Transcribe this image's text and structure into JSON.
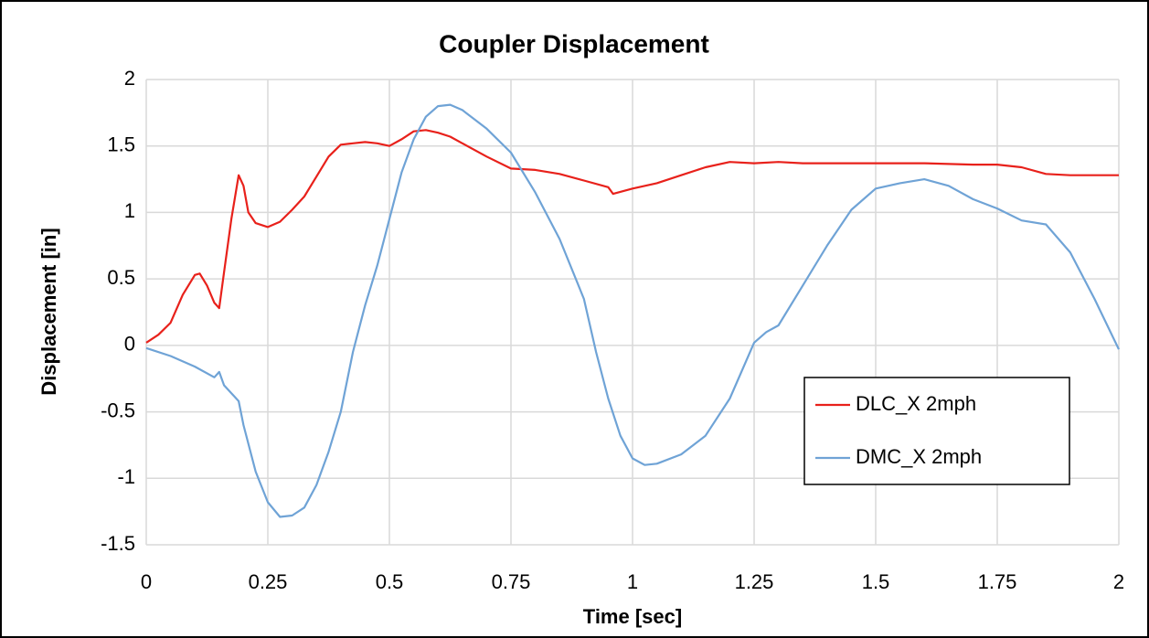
{
  "chart_data": {
    "type": "line",
    "title": "Coupler Displacement",
    "xlabel": "Time [sec]",
    "ylabel": "Displacement [in]",
    "xlim": [
      0,
      2
    ],
    "xticks": [
      0,
      0.25,
      0.5,
      0.75,
      1,
      1.25,
      1.5,
      1.75,
      2
    ],
    "ylim": [
      -1.5,
      2
    ],
    "yticks": [
      2,
      1.5,
      1,
      0.5,
      0,
      -0.5,
      -1,
      -1.5
    ],
    "grid": true,
    "legend": "lower right",
    "series": [
      {
        "name": "DLC_X 2mph",
        "color": "#e8211b",
        "x": [
          0,
          0.025,
          0.05,
          0.075,
          0.1,
          0.11,
          0.125,
          0.14,
          0.15,
          0.16,
          0.175,
          0.19,
          0.2,
          0.21,
          0.225,
          0.25,
          0.275,
          0.3,
          0.325,
          0.35,
          0.375,
          0.4,
          0.425,
          0.45,
          0.475,
          0.5,
          0.525,
          0.55,
          0.575,
          0.6,
          0.625,
          0.65,
          0.7,
          0.75,
          0.8,
          0.85,
          0.9,
          0.95,
          0.96,
          1,
          1.05,
          1.1,
          1.15,
          1.2,
          1.25,
          1.3,
          1.35,
          1.4,
          1.5,
          1.6,
          1.7,
          1.75,
          1.8,
          1.85,
          1.9,
          2
        ],
        "values": [
          0.02,
          0.08,
          0.17,
          0.38,
          0.53,
          0.54,
          0.45,
          0.32,
          0.28,
          0.55,
          0.95,
          1.28,
          1.2,
          1.0,
          0.92,
          0.89,
          0.93,
          1.02,
          1.12,
          1.27,
          1.42,
          1.51,
          1.52,
          1.53,
          1.52,
          1.5,
          1.55,
          1.61,
          1.62,
          1.6,
          1.57,
          1.52,
          1.42,
          1.33,
          1.32,
          1.29,
          1.24,
          1.19,
          1.14,
          1.18,
          1.22,
          1.28,
          1.34,
          1.38,
          1.37,
          1.38,
          1.37,
          1.37,
          1.37,
          1.37,
          1.36,
          1.36,
          1.34,
          1.29,
          1.28,
          1.28
        ]
      },
      {
        "name": "DMC_X 2mph",
        "color": "#6fa3d6",
        "x": [
          0,
          0.05,
          0.1,
          0.14,
          0.15,
          0.16,
          0.19,
          0.2,
          0.225,
          0.25,
          0.275,
          0.3,
          0.325,
          0.35,
          0.375,
          0.4,
          0.425,
          0.45,
          0.475,
          0.5,
          0.525,
          0.55,
          0.575,
          0.6,
          0.625,
          0.65,
          0.7,
          0.75,
          0.8,
          0.85,
          0.9,
          0.925,
          0.95,
          0.975,
          1,
          1.025,
          1.05,
          1.1,
          1.15,
          1.2,
          1.25,
          1.275,
          1.3,
          1.35,
          1.4,
          1.45,
          1.5,
          1.55,
          1.6,
          1.65,
          1.7,
          1.75,
          1.8,
          1.85,
          1.9,
          1.95,
          2
        ],
        "values": [
          -0.02,
          -0.08,
          -0.16,
          -0.24,
          -0.2,
          -0.3,
          -0.42,
          -0.6,
          -0.95,
          -1.18,
          -1.29,
          -1.28,
          -1.22,
          -1.05,
          -0.8,
          -0.5,
          -0.05,
          0.3,
          0.6,
          0.95,
          1.3,
          1.55,
          1.72,
          1.8,
          1.81,
          1.77,
          1.63,
          1.45,
          1.15,
          0.8,
          0.35,
          -0.05,
          -0.4,
          -0.68,
          -0.85,
          -0.9,
          -0.89,
          -0.82,
          -0.68,
          -0.4,
          0.02,
          0.1,
          0.15,
          0.45,
          0.75,
          1.02,
          1.18,
          1.22,
          1.25,
          1.2,
          1.1,
          1.03,
          0.94,
          0.91,
          0.7,
          0.35,
          -0.03
        ]
      }
    ]
  }
}
